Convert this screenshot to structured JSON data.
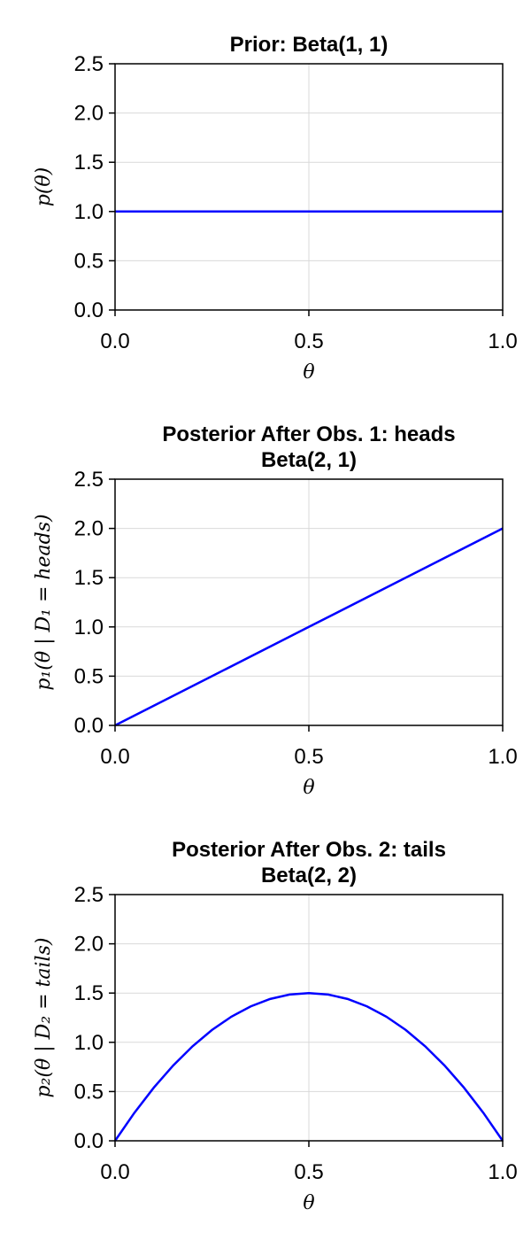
{
  "chart_data": [
    {
      "type": "line",
      "title": [
        "Prior: Beta(1, 1)"
      ],
      "xlabel": "θ",
      "ylabel": "p(θ)",
      "xlim": [
        0,
        1
      ],
      "ylim": [
        0,
        2.5
      ],
      "xticks": [
        "0.0",
        "0.5",
        "1.0"
      ],
      "yticks": [
        "0.0",
        "0.5",
        "1.0",
        "1.5",
        "2.0",
        "2.5"
      ],
      "grid": true,
      "series": [
        {
          "color": "#0000ff",
          "x": [
            0,
            1
          ],
          "y": [
            1,
            1
          ]
        }
      ]
    },
    {
      "type": "line",
      "title": [
        "Posterior After Obs. 1: heads",
        "Beta(2, 1)"
      ],
      "xlabel": "θ",
      "ylabel": "p₁(θ | D₁ = heads)",
      "xlim": [
        0,
        1
      ],
      "ylim": [
        0,
        2.5
      ],
      "xticks": [
        "0.0",
        "0.5",
        "1.0"
      ],
      "yticks": [
        "0.0",
        "0.5",
        "1.0",
        "1.5",
        "2.0",
        "2.5"
      ],
      "grid": true,
      "series": [
        {
          "color": "#0000ff",
          "x": [
            0,
            0.5,
            1
          ],
          "y": [
            0,
            1,
            2
          ]
        }
      ]
    },
    {
      "type": "line",
      "title": [
        "Posterior After Obs. 2: tails",
        "Beta(2, 2)"
      ],
      "xlabel": "θ",
      "ylabel": "p₂(θ | D₂ = tails)",
      "xlim": [
        0,
        1
      ],
      "ylim": [
        0,
        2.5
      ],
      "xticks": [
        "0.0",
        "0.5",
        "1.0"
      ],
      "yticks": [
        "0.0",
        "0.5",
        "1.0",
        "1.5",
        "2.0",
        "2.5"
      ],
      "grid": true,
      "series": [
        {
          "color": "#0000ff",
          "x": [
            0,
            0.05,
            0.1,
            0.15,
            0.2,
            0.25,
            0.3,
            0.35,
            0.4,
            0.45,
            0.5,
            0.55,
            0.6,
            0.65,
            0.7,
            0.75,
            0.8,
            0.85,
            0.9,
            0.95,
            1
          ],
          "y": [
            0,
            0.285,
            0.54,
            0.765,
            0.96,
            1.125,
            1.26,
            1.365,
            1.44,
            1.485,
            1.5,
            1.485,
            1.44,
            1.365,
            1.26,
            1.125,
            0.96,
            0.765,
            0.54,
            0.285,
            0
          ]
        }
      ]
    }
  ]
}
